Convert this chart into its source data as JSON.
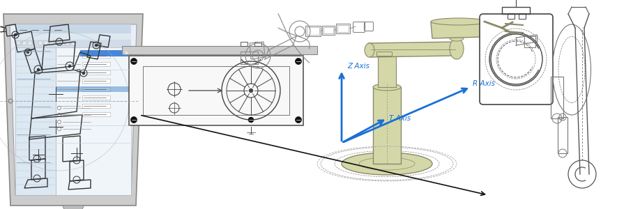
{
  "bg_color": "#ffffff",
  "figsize": [
    8.85,
    3.0
  ],
  "dpi": 100,
  "z_axis_label": "Z Axis",
  "t_axis_label": "T Axis",
  "r_axis_label": "R Axis",
  "axis_color": "#1a6fd4",
  "robot_body_color": "#d4d8a8",
  "robot_body_edge": "#8a8a6a",
  "line_color": "#444444",
  "sketch_color": "#555555",
  "white": "#ffffff",
  "screen_bg": "#e8eff8",
  "monitor_frame": "#cccccc",
  "monitor_stand": "#aaaaaa",
  "box_fill": "#f8f8f8",
  "dark": "#222222"
}
